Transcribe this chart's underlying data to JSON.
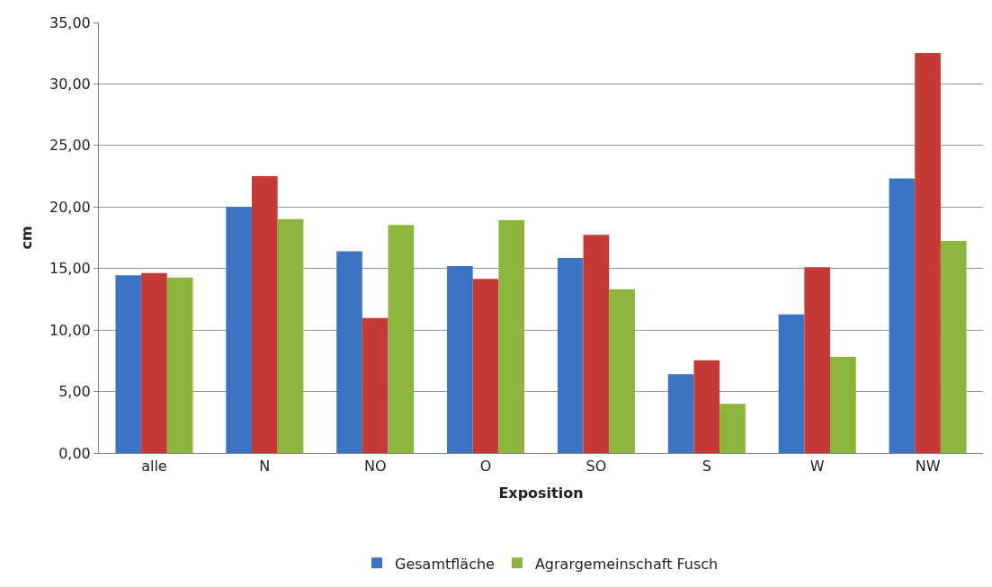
{
  "chart_data": {
    "type": "bar",
    "xlabel": "Exposition",
    "ylabel": "cm",
    "categories": [
      "alle",
      "N",
      "NO",
      "O",
      "SO",
      "S",
      "W",
      "NW"
    ],
    "series": [
      {
        "name": "Gesamtfläche",
        "color": "#3a74c2",
        "values": [
          14.45,
          20.0,
          16.4,
          15.2,
          15.86,
          6.41,
          11.27,
          22.32
        ]
      },
      {
        "color": "#c63a36",
        "values": [
          14.63,
          22.5,
          10.98,
          14.16,
          17.74,
          7.55,
          15.1,
          32.51
        ]
      },
      {
        "name": "Agrargemeinschaft Fusch",
        "color": "#8db53e",
        "values": [
          14.26,
          19.02,
          18.55,
          18.92,
          13.32,
          4.0,
          7.82,
          17.24
        ]
      }
    ],
    "ylim": [
      0,
      35
    ],
    "yticks": [
      {
        "value": 0,
        "label": "0,00"
      },
      {
        "value": 5,
        "label": "5,00"
      },
      {
        "value": 10,
        "label": "10,00"
      },
      {
        "value": 15,
        "label": "15,00"
      },
      {
        "value": 20,
        "label": "20,00"
      },
      {
        "value": 25,
        "label": "25,00"
      },
      {
        "value": 30,
        "label": "30,00"
      },
      {
        "value": 35,
        "label": "35,00"
      }
    ],
    "grid": "y",
    "legend": "bottom"
  }
}
